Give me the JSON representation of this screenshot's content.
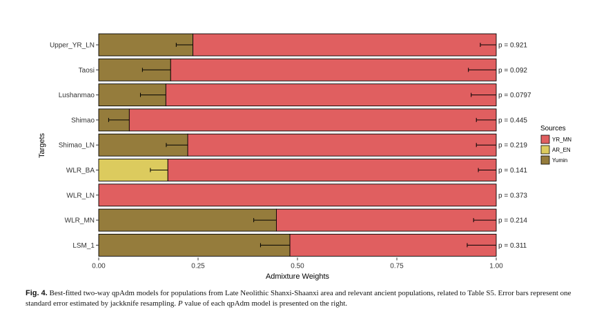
{
  "chart_data": {
    "type": "bar",
    "orientation": "horizontal",
    "stacked": true,
    "xlabel": "Admixture Weights",
    "ylabel": "Targets",
    "xlim": [
      0,
      1
    ],
    "xticks": [
      "0.00",
      "0.25",
      "0.50",
      "0.75",
      "1.00"
    ],
    "xtick_values": [
      0,
      0.25,
      0.5,
      0.75,
      1.0
    ],
    "legend": {
      "title": "Sources",
      "position": "right",
      "entries": [
        {
          "name": "YR_MN",
          "color": "#e05f60"
        },
        {
          "name": "AR_EN",
          "color": "#dccb5e"
        },
        {
          "name": "Yumin",
          "color": "#957c3c"
        }
      ]
    },
    "categories": [
      "Upper_YR_LN",
      "Taosi",
      "Lushanmao",
      "Shimao",
      "Shimao_LN",
      "WLR_BA",
      "WLR_LN",
      "WLR_MN",
      "LSM_1"
    ],
    "bars": [
      {
        "target": "Upper_YR_LN",
        "first_source": "Yumin",
        "first_weight": 0.237,
        "second_source": "YR_MN",
        "second_weight": 0.763,
        "first_err": [
          0.195,
          0.237
        ],
        "second_err": [
          0.96,
          1.0
        ],
        "p_value": "p = 0.921"
      },
      {
        "target": "Taosi",
        "first_source": "Yumin",
        "first_weight": 0.181,
        "second_source": "YR_MN",
        "second_weight": 0.819,
        "first_err": [
          0.11,
          0.181
        ],
        "second_err": [
          0.93,
          1.0
        ],
        "p_value": "p = 0.092"
      },
      {
        "target": "Lushanmao",
        "first_source": "Yumin",
        "first_weight": 0.169,
        "second_source": "YR_MN",
        "second_weight": 0.831,
        "first_err": [
          0.105,
          0.169
        ],
        "second_err": [
          0.937,
          1.0
        ],
        "p_value": "p = 0.0797"
      },
      {
        "target": "Shimao",
        "first_source": "Yumin",
        "first_weight": 0.077,
        "second_source": "YR_MN",
        "second_weight": 0.923,
        "first_err": [
          0.025,
          0.077
        ],
        "second_err": [
          0.95,
          1.0
        ],
        "p_value": "p = 0.445"
      },
      {
        "target": "Shimao_LN",
        "first_source": "Yumin",
        "first_weight": 0.224,
        "second_source": "YR_MN",
        "second_weight": 0.776,
        "first_err": [
          0.17,
          0.224
        ],
        "second_err": [
          0.95,
          1.0
        ],
        "p_value": "p = 0.219"
      },
      {
        "target": "WLR_BA",
        "first_source": "AR_EN",
        "first_weight": 0.174,
        "second_source": "YR_MN",
        "second_weight": 0.826,
        "first_err": [
          0.13,
          0.174
        ],
        "second_err": [
          0.955,
          1.0
        ],
        "p_value": "p = 0.141"
      },
      {
        "target": "WLR_LN",
        "first_source": "Yumin",
        "first_weight": 0.0,
        "second_source": "YR_MN",
        "second_weight": 1.0,
        "first_err": null,
        "second_err": null,
        "p_value": "p = 0.373"
      },
      {
        "target": "WLR_MN",
        "first_source": "Yumin",
        "first_weight": 0.447,
        "second_source": "YR_MN",
        "second_weight": 0.553,
        "first_err": [
          0.39,
          0.447
        ],
        "second_err": [
          0.943,
          1.0
        ],
        "p_value": "p = 0.214"
      },
      {
        "target": "LSM_1",
        "first_source": "Yumin",
        "first_weight": 0.481,
        "second_source": "YR_MN",
        "second_weight": 0.519,
        "first_err": [
          0.407,
          0.481
        ],
        "second_err": [
          0.927,
          1.0
        ],
        "p_value": "p = 0.311"
      }
    ]
  },
  "caption": {
    "fig_label": "Fig. 4.",
    "text_part1": " Best-fitted two-way qpAdm models for populations from Late Neolithic Shanxi-Shaanxi area and relevant ancient populations, related to Table S5. Error bars represent one standard error estimated by jackknife resampling. ",
    "p_italic": "P",
    "text_part2": " value of each qpAdm model is presented on the right."
  }
}
